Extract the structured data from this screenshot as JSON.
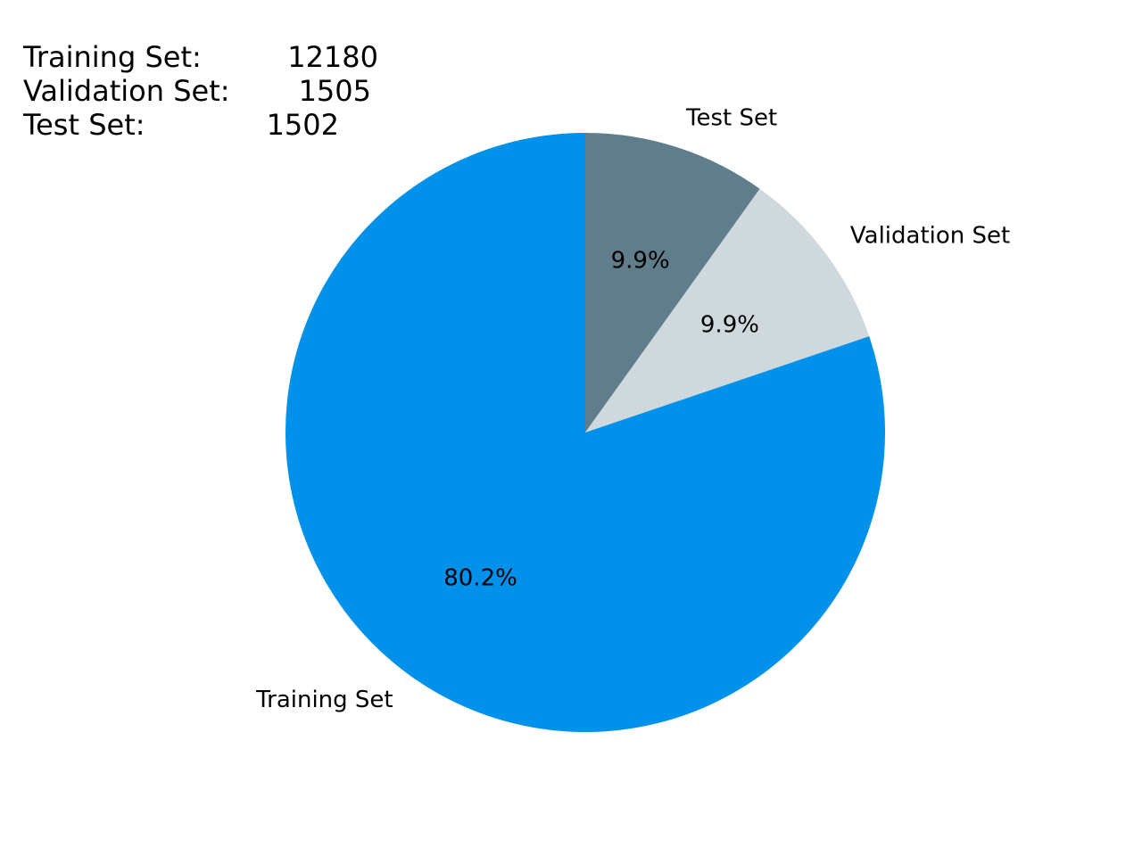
{
  "chart_data": {
    "type": "pie",
    "title": "",
    "start_angle_deg": 90,
    "direction": "clockwise",
    "slices": [
      {
        "label": "Test Set",
        "value": 1502,
        "percent_label": "9.9%",
        "color": "#607d8b"
      },
      {
        "label": "Validation Set",
        "value": 1505,
        "percent_label": "9.9%",
        "color": "#cfd8dc"
      },
      {
        "label": "Training Set",
        "value": 12180,
        "percent_label": "80.2%",
        "color": "#0091ea"
      }
    ]
  },
  "summary": {
    "rows": [
      {
        "name": "Training Set:",
        "count": "12180"
      },
      {
        "name": "Validation Set:",
        "count": "1505"
      },
      {
        "name": "Test Set:",
        "count": "1502"
      }
    ]
  }
}
